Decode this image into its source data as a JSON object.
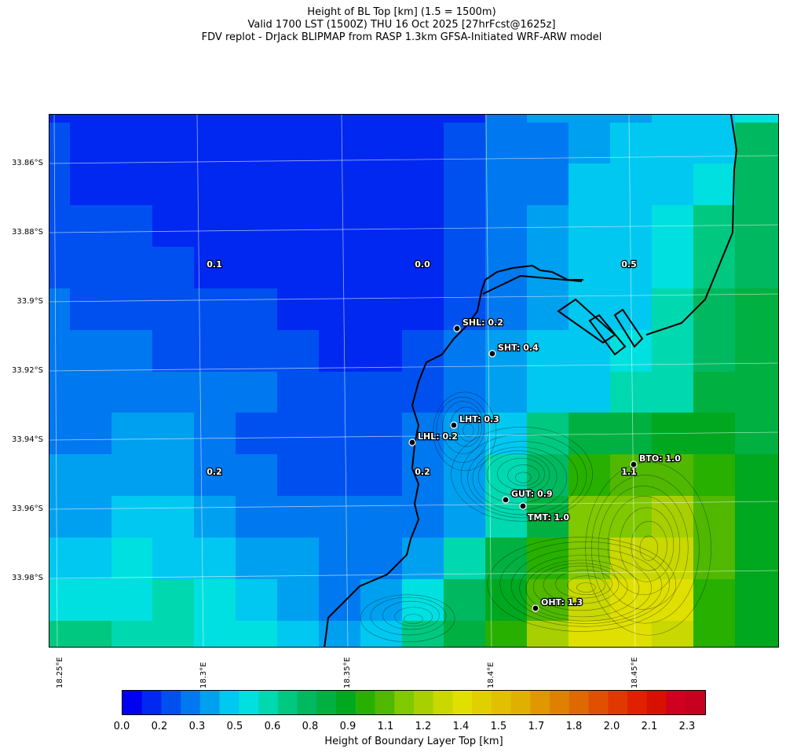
{
  "header": {
    "title_line1": "Height of BL Top [km] (1.5 = 1500m)",
    "title_line2": "Valid 1700 LST (1500Z) THU 16 Oct 2025 [27hrFcst@1625z]",
    "title_line3": "FDV replot - DrJack BLIPMAP from RASP 1.3km GFSA-Initiated WRF-ARW model"
  },
  "map": {
    "lat_labels": [
      "33.86°S",
      "33.88°S",
      "33.9°S",
      "33.92°S",
      "33.94°S",
      "33.96°S",
      "33.98°S"
    ],
    "lon_labels": [
      "18.25°E",
      "18.3°E",
      "18.35°E",
      "18.4°E",
      "18.45°E"
    ],
    "grid_values": [
      {
        "value": "0.1"
      },
      {
        "value": "0.0"
      },
      {
        "value": "0.5"
      },
      {
        "value": "0.2"
      },
      {
        "value": "0.2"
      },
      {
        "value": "1.1"
      }
    ],
    "stations": [
      {
        "code": "SHL",
        "label": "SHL: 0.2",
        "value": 0.2
      },
      {
        "code": "SHT",
        "label": "SHT: 0.4",
        "value": 0.4
      },
      {
        "code": "LHT",
        "label": "LHT: 0.3",
        "value": 0.3
      },
      {
        "code": "LHL",
        "label": "LHL: 0.2",
        "value": 0.2
      },
      {
        "code": "BTO",
        "label": "BTO: 1.0",
        "value": 1.0
      },
      {
        "code": "GUT",
        "label": "GUT: 0.9",
        "value": 0.9
      },
      {
        "code": "TMT",
        "label": "TMT: 1.0",
        "value": 1.0
      },
      {
        "code": "OHT",
        "label": "OHT: 1.3",
        "value": 1.3
      }
    ]
  },
  "colorbar": {
    "label": "Height of Boundary Layer Top [km]",
    "tick_labels": [
      "0.0",
      "0.2",
      "0.3",
      "0.5",
      "0.6",
      "0.8",
      "0.9",
      "1.1",
      "1.2",
      "1.4",
      "1.5",
      "1.7",
      "1.8",
      "2.0",
      "2.1",
      "2.3"
    ],
    "colors": [
      "#0000f0",
      "#0028f0",
      "#0050f0",
      "#0078f0",
      "#00a0f0",
      "#00c8f0",
      "#00e0e0",
      "#00d8b0",
      "#00c880",
      "#00b860",
      "#00b040",
      "#00a820",
      "#28b000",
      "#50b800",
      "#80c800",
      "#a8d000",
      "#c8d800",
      "#e0e000",
      "#e0d000",
      "#e0c000",
      "#e0b000",
      "#e09800",
      "#e08000",
      "#e06800",
      "#e05000",
      "#e03800",
      "#e02000",
      "#d81000",
      "#d00020",
      "#c80020"
    ]
  }
}
